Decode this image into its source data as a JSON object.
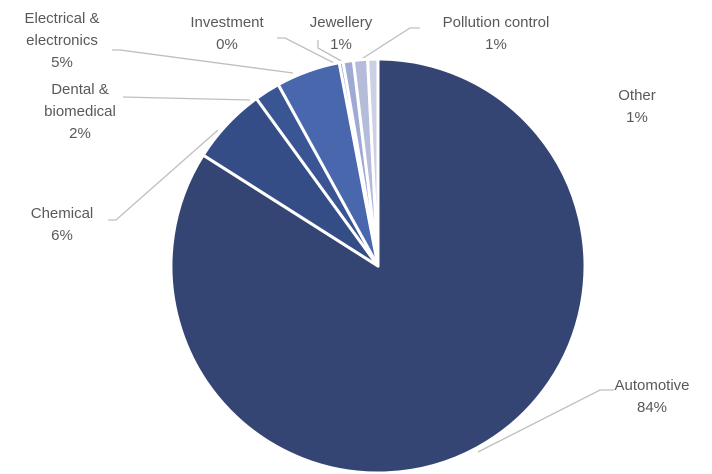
{
  "chart_data": {
    "type": "pie",
    "title": "",
    "legend": "none",
    "slices": [
      {
        "label_lines": [
          "Automotive"
        ],
        "value_text": "84%",
        "value": 84,
        "color": "#344574"
      },
      {
        "label_lines": [
          "Chemical"
        ],
        "value_text": "6%",
        "value": 6,
        "color": "#344d86"
      },
      {
        "label_lines": [
          "Dental &",
          "biomedical"
        ],
        "value_text": "2%",
        "value": 2,
        "color": "#3a5594"
      },
      {
        "label_lines": [
          "Electrical &",
          "electronics"
        ],
        "value_text": "5%",
        "value": 5,
        "color": "#4867ad"
      },
      {
        "label_lines": [
          "Investment"
        ],
        "value_text": "0%",
        "value": 0.3,
        "color": "#8ea0cf"
      },
      {
        "label_lines": [
          "Jewellery"
        ],
        "value_text": "1%",
        "value": 0.8,
        "color": "#9eaad3"
      },
      {
        "label_lines": [
          "Pollution control"
        ],
        "value_text": "1%",
        "value": 1.1,
        "color": "#b4bcda"
      },
      {
        "label_lines": [
          "Other"
        ],
        "value_text": "1%",
        "value": 0.8,
        "color": "#ccd0e4"
      }
    ]
  }
}
